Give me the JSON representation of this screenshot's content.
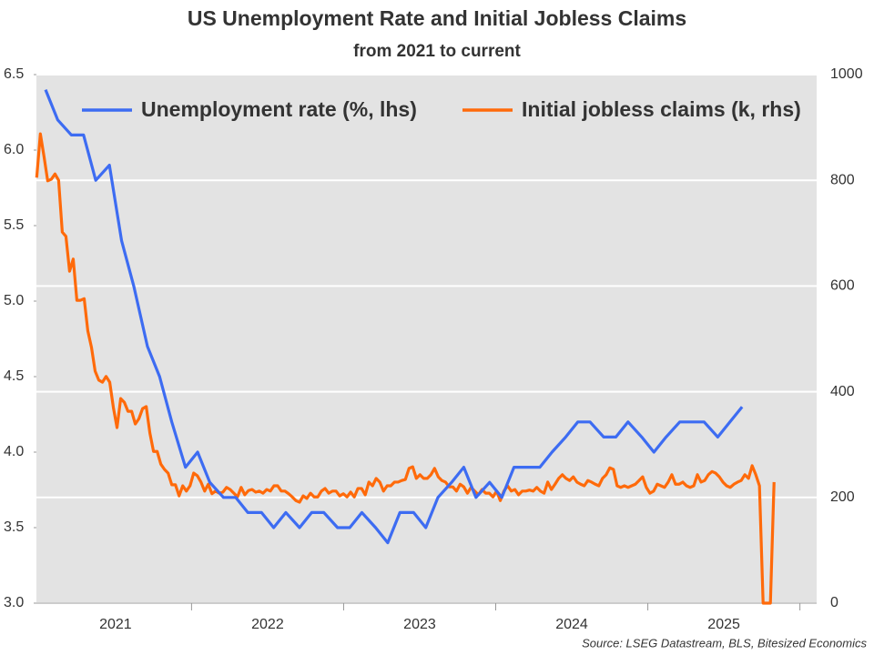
{
  "chart_data": {
    "type": "line",
    "title": "US Unemployment Rate and Initial Jobless Claims",
    "subtitle": "from 2021 to current",
    "source": "Source: LSEG Datastream, BLS, Bitesized Economics",
    "legend": "top",
    "grid": true,
    "background": "#e3e3e3",
    "xlim": [
      2020.98,
      2026.11
    ],
    "xticks": [
      {
        "value": 2021.5,
        "label": "2021"
      },
      {
        "value": 2022.5,
        "label": "2022"
      },
      {
        "value": 2023.5,
        "label": "2023"
      },
      {
        "value": 2024.5,
        "label": "2024"
      },
      {
        "value": 2025.5,
        "label": "2025"
      }
    ],
    "xtick_marks": [
      2022,
      2023,
      2024,
      2025,
      2026
    ],
    "ylim": [
      3.0,
      6.5
    ],
    "yticks": [
      {
        "value": 3,
        "label": "3.0"
      },
      3.5,
      {
        "value": 4,
        "label": "4.0"
      },
      4.5,
      {
        "value": 5,
        "label": "5.0"
      },
      5.5,
      {
        "value": 6,
        "label": "6.0"
      },
      6.5
    ],
    "y2lim": [
      0,
      1000
    ],
    "y2ticks": [
      0,
      200,
      400,
      600,
      800,
      1000
    ],
    "series": [
      {
        "name": "Unemployment rate (%, lhs)",
        "color": "#3d6cf2",
        "axis": "y",
        "x": [
          2021.04,
          2021.12,
          2021.21,
          2021.29,
          2021.37,
          2021.46,
          2021.54,
          2021.62,
          2021.71,
          2021.79,
          2021.87,
          2021.96,
          2022.04,
          2022.12,
          2022.21,
          2022.29,
          2022.37,
          2022.46,
          2022.54,
          2022.62,
          2022.71,
          2022.79,
          2022.87,
          2022.96,
          2023.04,
          2023.12,
          2023.21,
          2023.29,
          2023.37,
          2023.46,
          2023.54,
          2023.62,
          2023.71,
          2023.79,
          2023.87,
          2023.96,
          2024.04,
          2024.12,
          2024.21,
          2024.29,
          2024.37,
          2024.46,
          2024.54,
          2024.62,
          2024.71,
          2024.79,
          2024.87,
          2024.96,
          2025.04,
          2025.12,
          2025.21,
          2025.29,
          2025.37,
          2025.46,
          2025.54,
          2025.62
        ],
        "values": [
          6.4,
          6.2,
          6.1,
          6.1,
          5.8,
          5.9,
          5.4,
          5.1,
          4.7,
          4.5,
          4.2,
          3.9,
          4.0,
          3.8,
          3.7,
          3.7,
          3.6,
          3.6,
          3.5,
          3.6,
          3.5,
          3.6,
          3.6,
          3.5,
          3.5,
          3.6,
          3.5,
          3.4,
          3.6,
          3.6,
          3.5,
          3.7,
          3.8,
          3.9,
          3.7,
          3.8,
          3.7,
          3.9,
          3.9,
          3.9,
          4.0,
          4.1,
          4.2,
          4.2,
          4.1,
          4.1,
          4.2,
          4.1,
          4.0,
          4.1,
          4.2,
          4.2,
          4.2,
          4.1,
          4.2,
          4.3
        ]
      },
      {
        "name": "Initial jobless claims (k, rhs)",
        "color": "#ff6a0a",
        "axis": "y2",
        "x": [
          2020.982,
          2021.006,
          2021.03,
          2021.054,
          2021.078,
          2021.102,
          2021.126,
          2021.15,
          2021.174,
          2021.198,
          2021.222,
          2021.246,
          2021.27,
          2021.294,
          2021.318,
          2021.342,
          2021.366,
          2021.39,
          2021.414,
          2021.438,
          2021.462,
          2021.486,
          2021.51,
          2021.534,
          2021.558,
          2021.582,
          2021.606,
          2021.63,
          2021.654,
          2021.678,
          2021.702,
          2021.726,
          2021.75,
          2021.774,
          2021.798,
          2021.822,
          2021.846,
          2021.87,
          2021.894,
          2021.918,
          2021.942,
          2021.966,
          2021.99,
          2022.014,
          2022.038,
          2022.062,
          2022.086,
          2022.11,
          2022.134,
          2022.158,
          2022.182,
          2022.206,
          2022.23,
          2022.254,
          2022.278,
          2022.302,
          2022.326,
          2022.35,
          2022.374,
          2022.398,
          2022.422,
          2022.446,
          2022.47,
          2022.494,
          2022.518,
          2022.542,
          2022.566,
          2022.59,
          2022.614,
          2022.638,
          2022.662,
          2022.686,
          2022.71,
          2022.734,
          2022.758,
          2022.782,
          2022.806,
          2022.83,
          2022.854,
          2022.878,
          2022.902,
          2022.926,
          2022.95,
          2022.974,
          2022.998,
          2023.022,
          2023.046,
          2023.07,
          2023.094,
          2023.118,
          2023.142,
          2023.166,
          2023.19,
          2023.214,
          2023.238,
          2023.262,
          2023.286,
          2023.31,
          2023.334,
          2023.358,
          2023.382,
          2023.406,
          2023.43,
          2023.454,
          2023.478,
          2023.502,
          2023.526,
          2023.55,
          2023.574,
          2023.598,
          2023.622,
          2023.646,
          2023.67,
          2023.694,
          2023.718,
          2023.742,
          2023.766,
          2023.79,
          2023.814,
          2023.838,
          2023.862,
          2023.886,
          2023.91,
          2023.934,
          2023.958,
          2023.982,
          2024.006,
          2024.03,
          2024.054,
          2024.078,
          2024.102,
          2024.126,
          2024.15,
          2024.174,
          2024.198,
          2024.222,
          2024.246,
          2024.27,
          2024.294,
          2024.318,
          2024.342,
          2024.366,
          2024.39,
          2024.414,
          2024.438,
          2024.462,
          2024.486,
          2024.51,
          2024.534,
          2024.558,
          2024.582,
          2024.606,
          2024.63,
          2024.654,
          2024.678,
          2024.702,
          2024.726,
          2024.75,
          2024.774,
          2024.798,
          2024.822,
          2024.846,
          2024.87,
          2024.894,
          2024.918,
          2024.942,
          2024.966,
          2024.99,
          2025.014,
          2025.038,
          2025.062,
          2025.086,
          2025.11,
          2025.134,
          2025.158,
          2025.182,
          2025.206,
          2025.23,
          2025.254,
          2025.278,
          2025.302,
          2025.326,
          2025.35,
          2025.374,
          2025.398,
          2025.422,
          2025.446,
          2025.47,
          2025.494,
          2025.518,
          2025.542,
          2025.566,
          2025.59,
          2025.614,
          2025.638,
          2025.662,
          2025.686,
          2025.71,
          2025.734,
          2025.758,
          2025.782,
          2025.806,
          2025.83
        ],
        "values": [
          805,
          888,
          845,
          799,
          802,
          812,
          800,
          702,
          694,
          628,
          651,
          573,
          573,
          576,
          515,
          484,
          439,
          422,
          418,
          429,
          418,
          370,
          332,
          387,
          380,
          363,
          363,
          339,
          349,
          368,
          372,
          322,
          287,
          287,
          263,
          253,
          246,
          224,
          224,
          203,
          222,
          212,
          222,
          246,
          241,
          229,
          212,
          225,
          207,
          212,
          208,
          210,
          219,
          215,
          208,
          201,
          219,
          205,
          213,
          215,
          210,
          212,
          208,
          215,
          212,
          222,
          222,
          212,
          212,
          207,
          201,
          194,
          191,
          203,
          198,
          208,
          201,
          201,
          212,
          217,
          208,
          212,
          212,
          203,
          207,
          201,
          210,
          201,
          217,
          217,
          205,
          229,
          222,
          236,
          229,
          212,
          222,
          222,
          229,
          229,
          232,
          234,
          255,
          258,
          236,
          243,
          236,
          236,
          243,
          255,
          239,
          232,
          229,
          220,
          220,
          212,
          225,
          220,
          208,
          219,
          212,
          205,
          215,
          208,
          208,
          201,
          212,
          194,
          212,
          222,
          212,
          215,
          205,
          212,
          212,
          214,
          212,
          219,
          212,
          208,
          229,
          215,
          225,
          236,
          243,
          236,
          232,
          239,
          229,
          225,
          222,
          232,
          229,
          225,
          222,
          236,
          243,
          256,
          253,
          222,
          219,
          222,
          219,
          222,
          225,
          232,
          239,
          219,
          208,
          212,
          225,
          222,
          219,
          229,
          243,
          225,
          225,
          229,
          222,
          219,
          222,
          243,
          229,
          232,
          243,
          249,
          246,
          239,
          229,
          222,
          219,
          225,
          229,
          232,
          243,
          236,
          260,
          243,
          222,
          0,
          0,
          0,
          229
        ]
      }
    ]
  }
}
